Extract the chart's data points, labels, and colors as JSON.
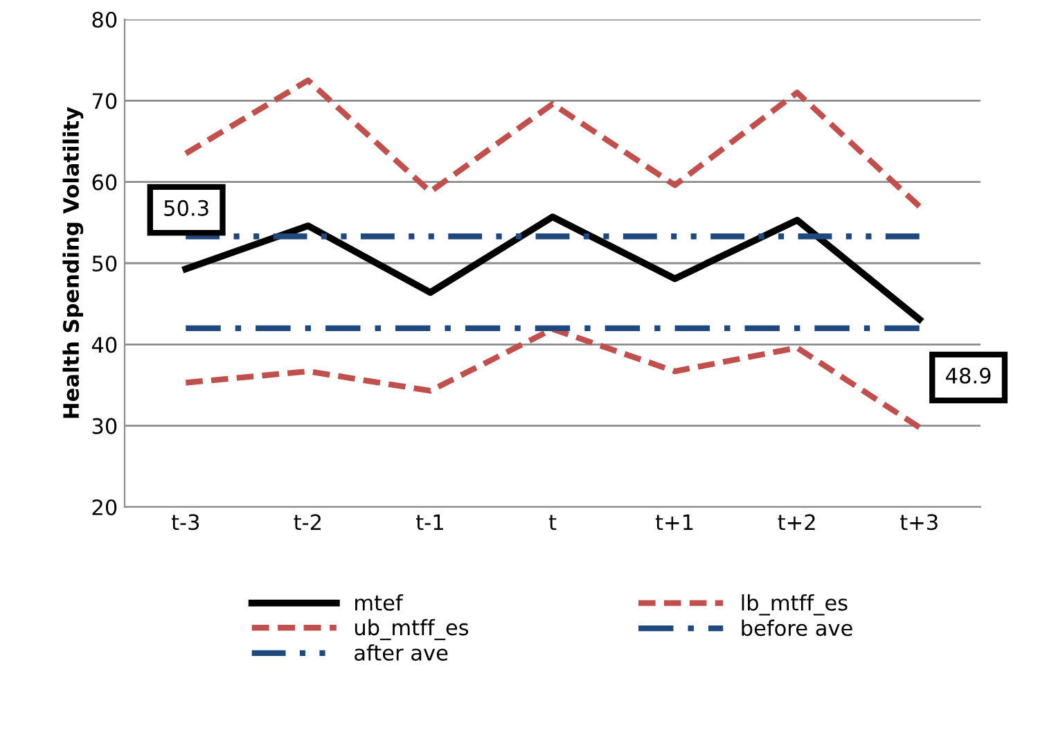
{
  "chart_data": {
    "type": "line",
    "ylabel": "Health Spending Volatility",
    "categories": [
      "t-3",
      "t-2",
      "t-1",
      "t",
      "t+1",
      "t+2",
      "t+3"
    ],
    "series": [
      {
        "name": "mtef",
        "color": "#000000",
        "line_style": "solid",
        "values": [
          49.3,
          54.6,
          46.4,
          55.7,
          48.1,
          55.3,
          43.1
        ]
      },
      {
        "name": "lb_mtff_es",
        "color": "#c0504d",
        "line_style": "dashed",
        "values": [
          35.3,
          36.7,
          34.3,
          41.9,
          36.7,
          39.6,
          29.8
        ]
      },
      {
        "name": "ub_mtff_es",
        "color": "#c0504d",
        "line_style": "dashed",
        "values": [
          63.5,
          72.5,
          58.8,
          69.6,
          59.6,
          71.0,
          57.0
        ]
      },
      {
        "name": "before ave",
        "color": "#1f497d",
        "line_style": "dashdot",
        "values": [
          42.0,
          42.0,
          42.0,
          42.0,
          42.0,
          42.0,
          42.0
        ]
      },
      {
        "name": "after ave",
        "color": "#1f497d",
        "line_style": "dashdotdot",
        "values": [
          53.3,
          53.3,
          53.3,
          53.3,
          53.3,
          53.3,
          53.3
        ]
      }
    ],
    "annotations": [
      "50.3",
      "48.9"
    ],
    "ylim": [
      20,
      80
    ],
    "yticks": [
      20,
      30,
      40,
      50,
      60,
      70,
      80
    ],
    "grid": "y",
    "legend": "bottom",
    "marker": "none"
  }
}
